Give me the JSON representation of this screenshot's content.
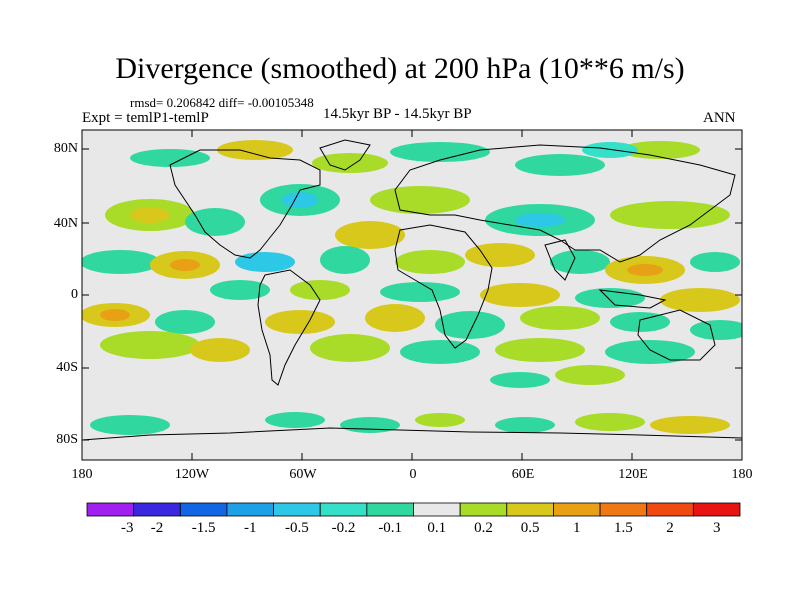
{
  "title": "Divergence (smoothed) at 200 hPa (10**6 m/s)",
  "stats": "rmsd= 0.206842 diff= -0.00105348",
  "experiment": "Expt = temlP1-temlP",
  "period": "14.5kyr BP - 14.5kyr BP",
  "season": "ANN",
  "lat_labels": [
    "80N",
    "40N",
    "0",
    "40S",
    "80S"
  ],
  "lon_labels": [
    "180",
    "120W",
    "60W",
    "0",
    "60E",
    "120E",
    "180"
  ],
  "colorbar": {
    "labels": [
      "-3",
      "-2",
      "-1.5",
      "-1",
      "-0.5",
      "-0.2",
      "-0.1",
      "0.1",
      "0.2",
      "0.5",
      "1",
      "1.5",
      "2",
      "3"
    ],
    "colors": [
      "#a020f0",
      "#3a28e0",
      "#1464e6",
      "#1ea0e6",
      "#2cc8e6",
      "#34e0c8",
      "#30d8a0",
      "#e8e8e8",
      "#a8dc28",
      "#d8c81c",
      "#e8a014",
      "#f07814",
      "#f04a10",
      "#e81414"
    ]
  },
  "map_colors": {
    "background": "#e8e8e8",
    "coast": "#000000"
  }
}
